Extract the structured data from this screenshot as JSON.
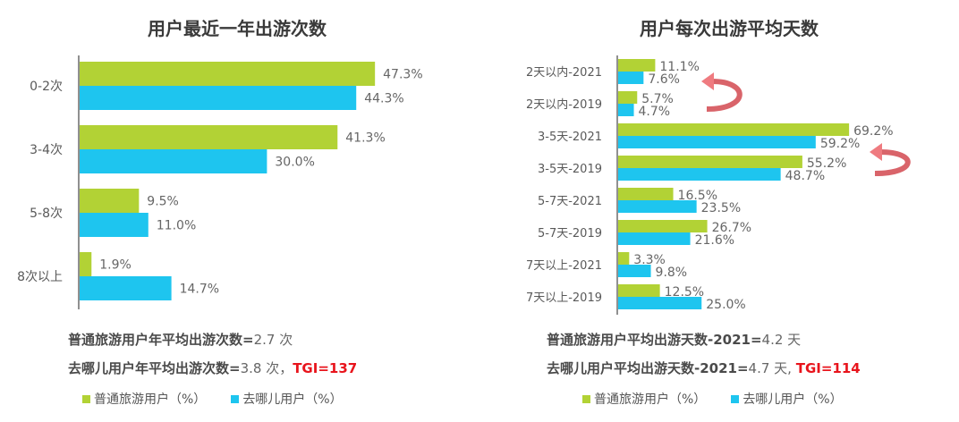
{
  "colors": {
    "regular": "#b2d235",
    "qunar": "#1ec5ef",
    "arrow": "#d9646a",
    "tgi": "#e8141c"
  },
  "chart_data": [
    {
      "type": "bar",
      "orientation": "horizontal",
      "title": "用户最近一年出游次数",
      "categories": [
        "0-2次",
        "3-4次",
        "5-8次",
        "8次以上"
      ],
      "series": [
        {
          "name": "普通旅游用户（%）",
          "values": [
            47.3,
            41.3,
            9.5,
            1.9
          ],
          "labels": [
            "47.3%",
            "41.3%",
            "9.5%",
            "1.9%"
          ]
        },
        {
          "name": "去哪儿用户（%）",
          "values": [
            44.3,
            30.0,
            11.0,
            14.7
          ],
          "labels": [
            "44.3%",
            "30.0%",
            "11.0%",
            "14.7%"
          ]
        }
      ],
      "xlim": [
        0,
        55
      ],
      "grid": false,
      "legend_position": "bottom",
      "notes": [
        {
          "label": "普通旅游用户年平均出游次数=",
          "value": "2.7 次",
          "tgi": ""
        },
        {
          "label": "去哪儿用户年平均出游次数=",
          "value": "3.8 次，",
          "tgi": "TGI=137"
        }
      ]
    },
    {
      "type": "bar",
      "orientation": "horizontal",
      "title": "用户每次出游平均天数",
      "categories": [
        "2天以内-2021",
        "2天以内-2019",
        "3-5天-2021",
        "3-5天-2019",
        "5-7天-2021",
        "5-7天-2019",
        "7天以上-2021",
        "7天以上-2019"
      ],
      "series": [
        {
          "name": "普通旅游用户（%）",
          "values": [
            11.1,
            5.7,
            69.2,
            55.2,
            16.5,
            26.7,
            3.3,
            12.5
          ],
          "labels": [
            "11.1%",
            "5.7%",
            "69.2%",
            "55.2%",
            "16.5%",
            "26.7%",
            "3.3%",
            "12.5%"
          ]
        },
        {
          "name": "去哪儿用户（%）",
          "values": [
            7.6,
            4.7,
            59.2,
            48.7,
            23.5,
            21.6,
            9.8,
            25.0
          ],
          "labels": [
            "7.6%",
            "4.7%",
            "59.2%",
            "48.7%",
            "23.5%",
            "21.6%",
            "9.8%",
            "25.0%"
          ]
        }
      ],
      "xlim": [
        0,
        75
      ],
      "grid": false,
      "legend_position": "bottom",
      "annotations": [
        "curved-arrow 2天以内-2019 → 2天以内-2021",
        "curved-arrow 3-5天-2019 → 3-5天-2021"
      ],
      "notes": [
        {
          "label": "普通旅游用户平均出游天数-2021=",
          "value": "4.2 天",
          "tgi": ""
        },
        {
          "label": "去哪儿用户平均出游天数-2021=",
          "value": "4.7 天, ",
          "tgi": "TGI=114"
        }
      ]
    }
  ]
}
